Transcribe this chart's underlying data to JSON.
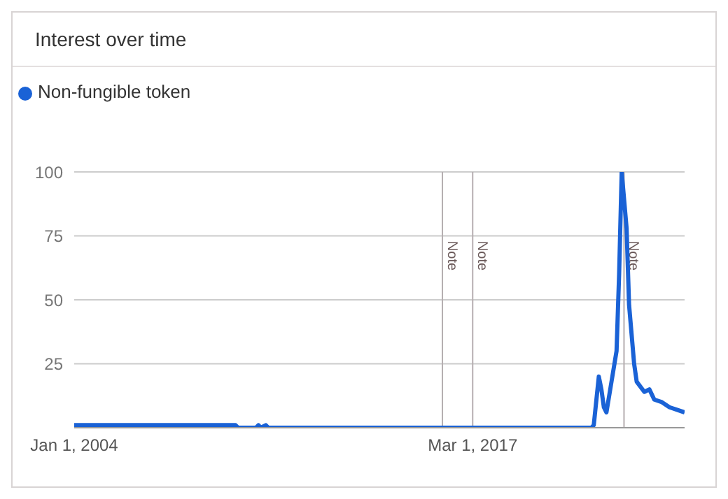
{
  "chart_data": {
    "type": "line",
    "title": "Interest over time",
    "x": [
      "2004-01",
      "2009-05",
      "2009-06",
      "2010-01",
      "2010-02",
      "2010-03",
      "2010-05",
      "2010-06",
      "2021-02",
      "2021-03",
      "2021-05",
      "2021-06",
      "2021-07",
      "2021-08",
      "2021-10",
      "2021-12",
      "2022-01",
      "2022-02",
      "2022-04",
      "2022-05",
      "2022-07",
      "2022-08",
      "2022-11",
      "2023-01",
      "2023-03",
      "2023-06",
      "2023-09",
      "2023-12",
      "2024-03"
    ],
    "series": [
      {
        "name": "Non-fungible token",
        "color": "#1a62d6",
        "values": [
          1,
          1,
          0,
          0,
          1,
          0,
          1,
          0,
          0,
          1,
          20,
          15,
          8,
          6,
          18,
          30,
          60,
          100,
          78,
          48,
          25,
          18,
          14,
          15,
          11,
          10,
          8,
          7,
          6
        ]
      }
    ],
    "xlim": [
      "2004-01",
      "2024-03"
    ],
    "xticks": [
      {
        "value": "2004-01-01",
        "label": "Jan 1, 2004"
      },
      {
        "value": "2017-03-01",
        "label": "Mar 1, 2017"
      }
    ],
    "ylim": [
      0,
      100
    ],
    "yticks": [
      25,
      50,
      75,
      100
    ],
    "ref_lines": [
      {
        "axis": "x",
        "value": "2016-03",
        "label": "Note",
        "color": "#b5aeb0"
      },
      {
        "axis": "x",
        "value": "2017-03",
        "label": "Note",
        "color": "#b5aeb0"
      },
      {
        "axis": "x",
        "value": "2022-03",
        "label": "Note",
        "color": "#b5aeb0"
      }
    ],
    "grid": "y",
    "legend": "top left",
    "marker": "none",
    "line_style": "solid"
  }
}
